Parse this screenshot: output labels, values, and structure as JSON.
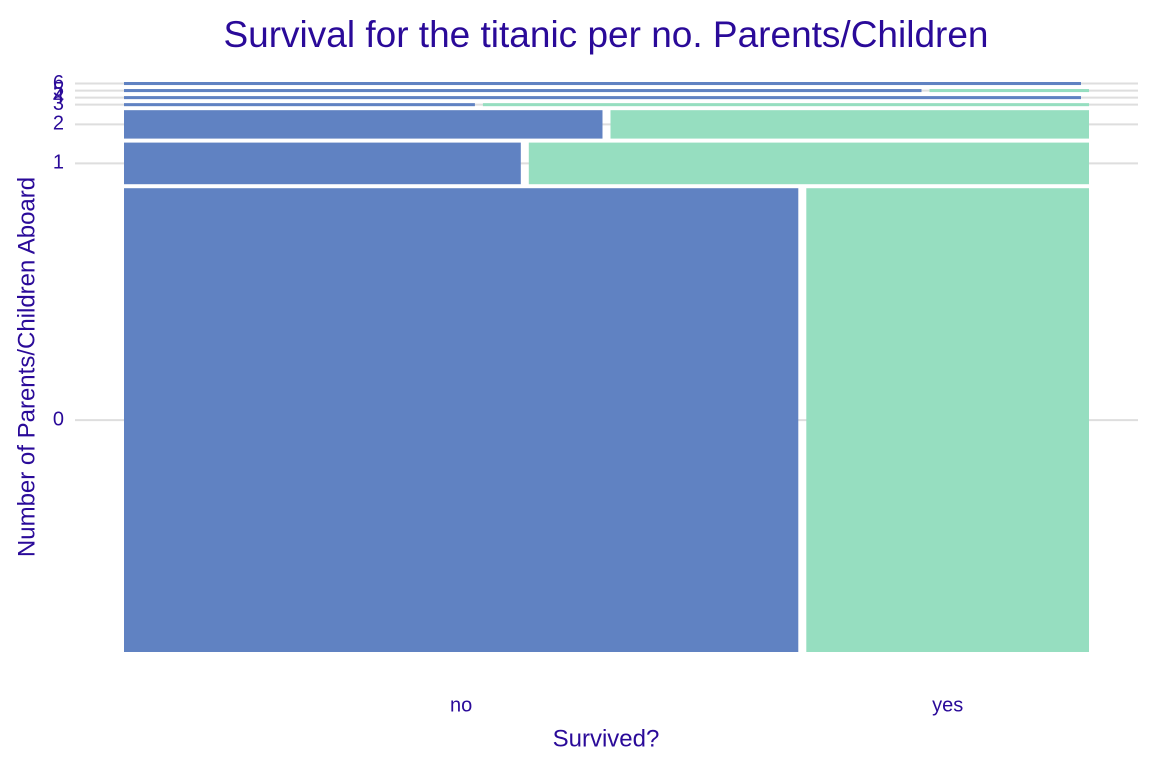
{
  "chart_data": {
    "type": "mosaic",
    "title": "Survival for the titanic per no. Parents/Children",
    "x_label": "Survived?",
    "y_label": "Number of Parents/Children Aboard",
    "categories": [
      "0",
      "1",
      "2",
      "3",
      "4",
      "5",
      "6"
    ],
    "series": [
      {
        "name": "no",
        "color": "#6082c2",
        "values": [
          322,
          17,
          14,
          1.1,
          3,
          2.5,
          3
        ]
      },
      {
        "name": "yes",
        "color": "#96dec0",
        "values": [
          135,
          24,
          14,
          1.9,
          0,
          0.5,
          0
        ]
      }
    ],
    "grid": true
  }
}
